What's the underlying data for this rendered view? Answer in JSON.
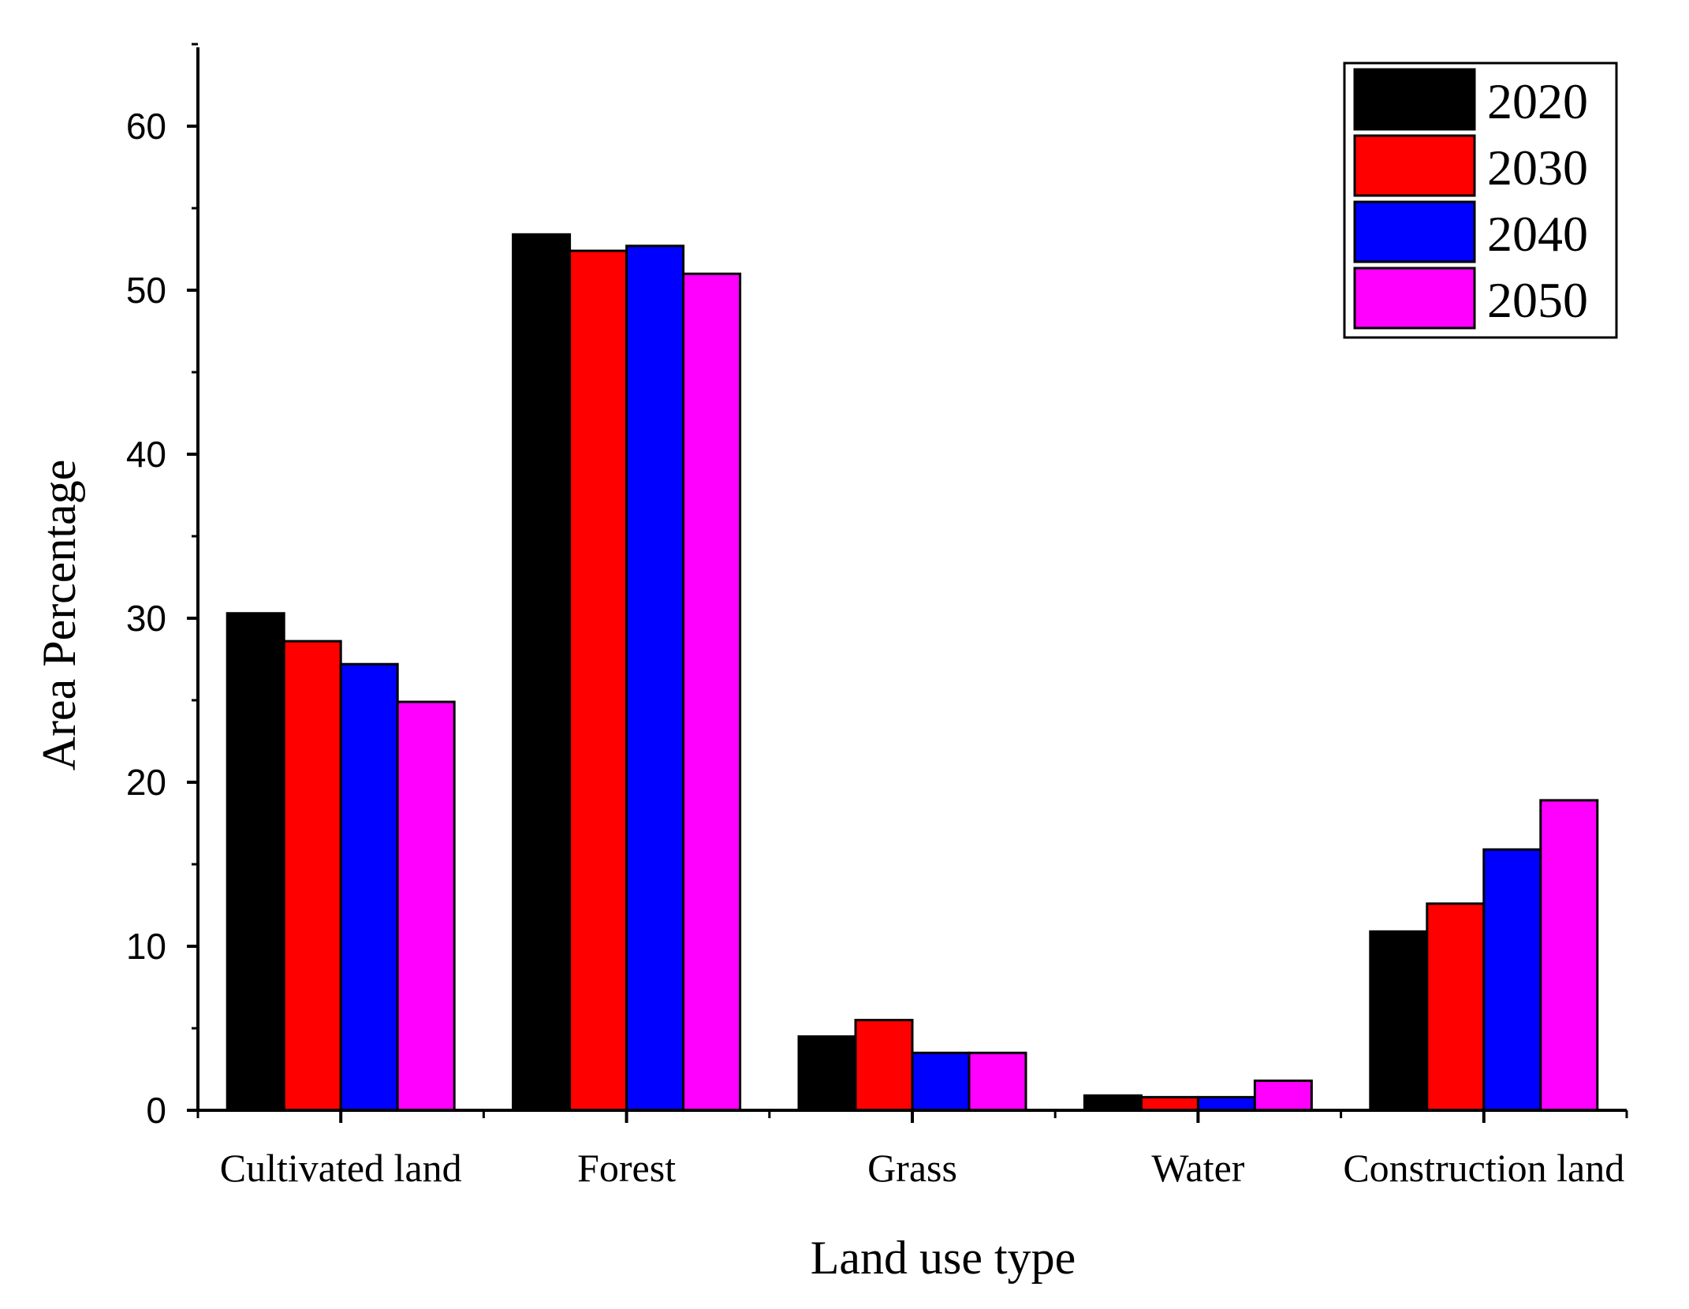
{
  "chart_data": {
    "type": "bar",
    "title": "",
    "xlabel": "Land use type",
    "ylabel": "Area Percentage",
    "categories": [
      "Cultivated land",
      "Forest",
      "Grass",
      "Water",
      "Construction land"
    ],
    "series": [
      {
        "name": "2020",
        "color": "#000000",
        "values": [
          30.3,
          53.4,
          4.5,
          0.9,
          10.9
        ]
      },
      {
        "name": "2030",
        "color": "#ff0000",
        "values": [
          28.6,
          52.4,
          5.5,
          0.8,
          12.6
        ]
      },
      {
        "name": "2040",
        "color": "#0000ff",
        "values": [
          27.2,
          52.7,
          3.5,
          0.8,
          15.9
        ]
      },
      {
        "name": "2050",
        "color": "#ff00ff",
        "values": [
          24.9,
          51.0,
          3.5,
          1.8,
          18.9
        ]
      }
    ],
    "ylim": [
      0,
      65
    ],
    "yticks": [
      0,
      10,
      20,
      30,
      40,
      50,
      60
    ],
    "legend_position": "top-right",
    "grid": false
  }
}
